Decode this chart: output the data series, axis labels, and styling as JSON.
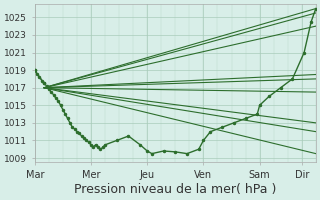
{
  "background_color": "#d8eee8",
  "plot_bg_color": "#d8eee8",
  "line_color": "#2d6e2d",
  "grid_color": "#aaccbb",
  "ylim": [
    1008.5,
    1026.5
  ],
  "yticks": [
    1009,
    1011,
    1013,
    1015,
    1017,
    1019,
    1021,
    1023,
    1025
  ],
  "xlabel": "Pression niveau de la mer( hPa )",
  "xlabel_fontsize": 9,
  "days": [
    "Mar",
    "Mer",
    "Jeu",
    "Ven",
    "Sam",
    "Dir"
  ],
  "day_positions": [
    0,
    24,
    48,
    72,
    96,
    114
  ],
  "xlim": [
    0,
    120
  ],
  "common_x": 4,
  "common_y": 1017.0,
  "fan_lines": [
    {
      "x": [
        4,
        120
      ],
      "y": [
        1017.0,
        1026.0
      ]
    },
    {
      "x": [
        4,
        120
      ],
      "y": [
        1017.0,
        1025.5
      ]
    },
    {
      "x": [
        4,
        120
      ],
      "y": [
        1017.0,
        1024.0
      ]
    },
    {
      "x": [
        4,
        120
      ],
      "y": [
        1017.0,
        1018.5
      ]
    },
    {
      "x": [
        4,
        120
      ],
      "y": [
        1017.0,
        1018.0
      ]
    },
    {
      "x": [
        4,
        120
      ],
      "y": [
        1017.0,
        1016.5
      ]
    },
    {
      "x": [
        4,
        120
      ],
      "y": [
        1017.0,
        1013.0
      ]
    },
    {
      "x": [
        4,
        120
      ],
      "y": [
        1017.0,
        1012.0
      ]
    },
    {
      "x": [
        4,
        120
      ],
      "y": [
        1017.0,
        1009.5
      ]
    }
  ],
  "main_line_x": [
    0,
    1,
    2,
    3,
    4,
    5,
    6,
    7,
    8,
    9,
    10,
    11,
    12,
    13,
    14,
    15,
    16,
    17,
    18,
    19,
    20,
    21,
    22,
    23,
    24,
    25,
    26,
    27,
    28,
    29,
    30,
    35,
    40,
    45,
    48,
    50,
    55,
    60,
    65,
    70,
    72,
    75,
    80,
    85,
    90,
    95,
    96,
    100,
    105,
    110,
    115,
    118,
    120
  ],
  "main_line_y": [
    1019.0,
    1018.5,
    1018.2,
    1017.8,
    1017.5,
    1017.2,
    1016.8,
    1016.5,
    1016.2,
    1015.8,
    1015.5,
    1015.0,
    1014.5,
    1014.0,
    1013.5,
    1013.0,
    1012.5,
    1012.3,
    1012.0,
    1011.8,
    1011.5,
    1011.3,
    1011.0,
    1010.8,
    1010.5,
    1010.3,
    1010.5,
    1010.3,
    1010.0,
    1010.2,
    1010.5,
    1011.0,
    1011.5,
    1010.5,
    1009.8,
    1009.5,
    1009.8,
    1009.7,
    1009.5,
    1010.0,
    1011.0,
    1012.0,
    1012.5,
    1013.0,
    1013.5,
    1014.0,
    1015.0,
    1016.0,
    1017.0,
    1018.0,
    1021.0,
    1024.5,
    1026.0
  ]
}
